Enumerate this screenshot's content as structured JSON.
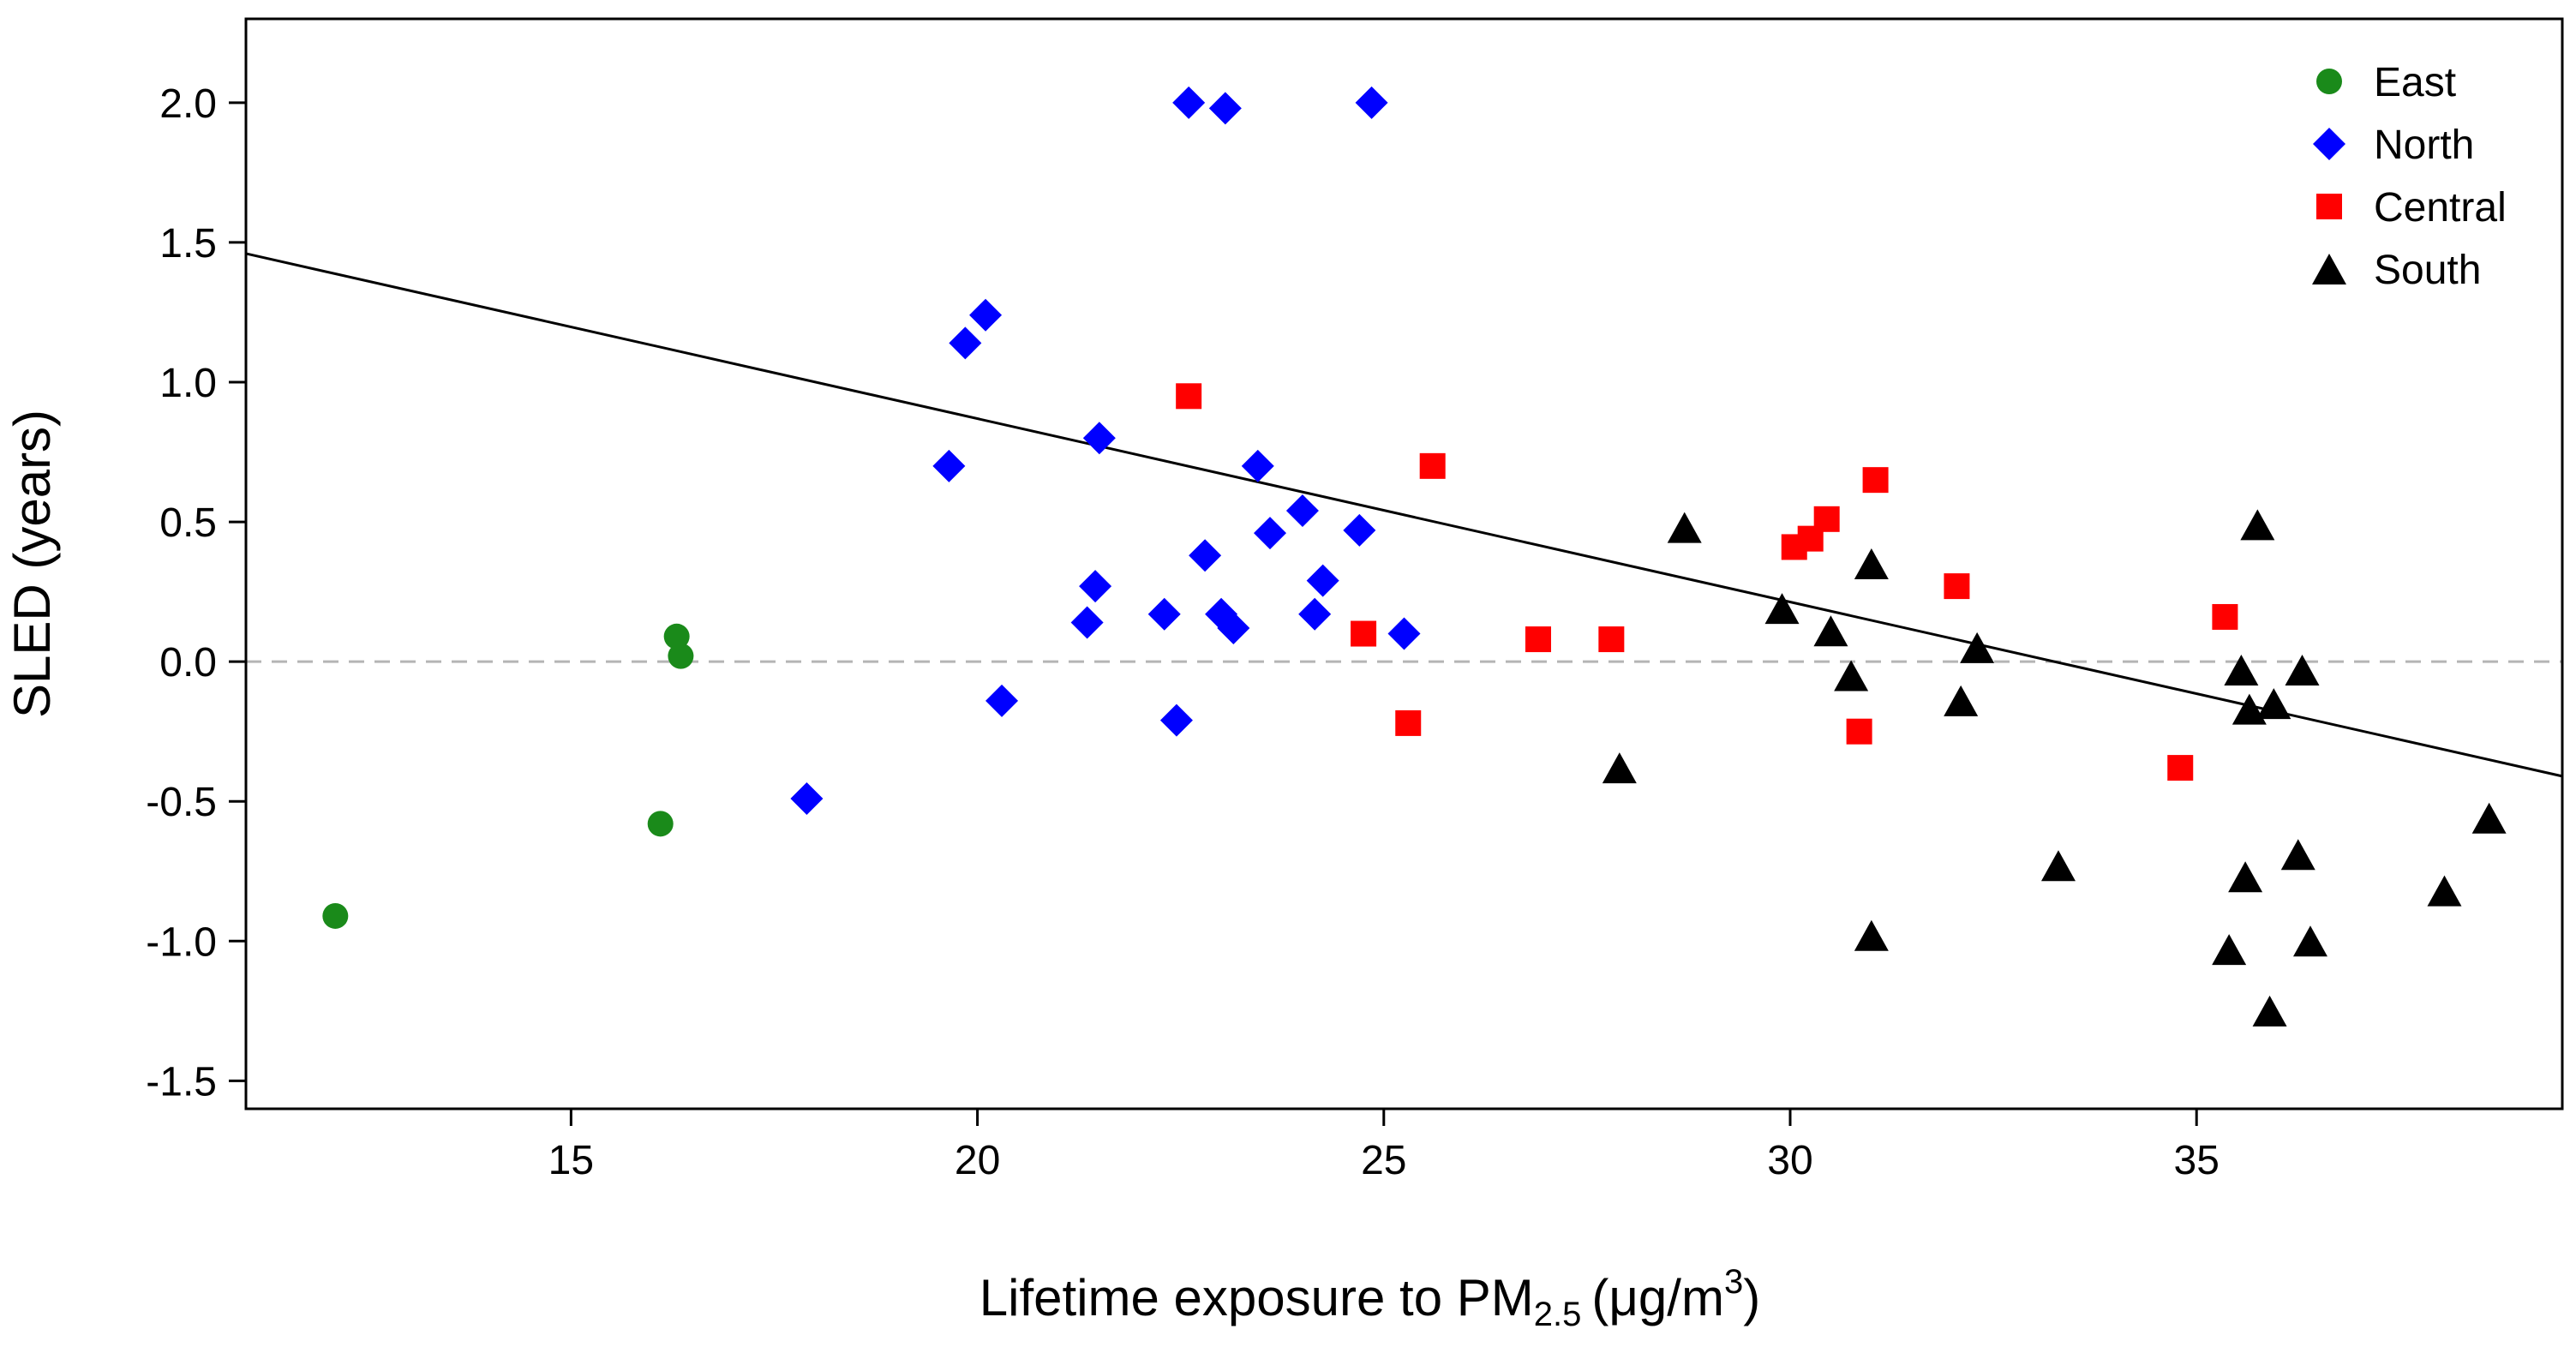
{
  "chart_data": {
    "type": "scatter",
    "title": "",
    "xlabel": "Lifetime exposure to PM",
    "xlabel_subscript": "2.5",
    "xlabel_unit_prefix": "(μg/m",
    "xlabel_unit_superscript": "3",
    "xlabel_unit_suffix": ")",
    "ylabel": "SLED (years)",
    "xlim": [
      11,
      39.5
    ],
    "ylim": [
      -1.6,
      2.3
    ],
    "xticks": [
      15,
      20,
      25,
      30,
      35
    ],
    "xtick_labels": [
      "15",
      "20",
      "25",
      "30",
      "35"
    ],
    "yticks": [
      -1.5,
      -1.0,
      -0.5,
      0.0,
      0.5,
      1.0,
      1.5,
      2.0
    ],
    "ytick_labels": [
      "-1.5",
      "-1.0",
      "-0.5",
      "0.0",
      "0.5",
      "1.0",
      "1.5",
      "2.0"
    ],
    "reference_line_y": 0,
    "regression_line": {
      "x": [
        11,
        39.5
      ],
      "y": [
        1.46,
        -0.41
      ]
    },
    "legend_position": "top-right",
    "series": [
      {
        "name": "East",
        "marker": "circle",
        "color": "#1a8a1a",
        "points": [
          [
            12.1,
            -0.91
          ],
          [
            16.1,
            -0.58
          ],
          [
            16.3,
            0.09
          ],
          [
            16.35,
            0.02
          ]
        ]
      },
      {
        "name": "North",
        "marker": "diamond",
        "color": "#0000ff",
        "points": [
          [
            17.9,
            -0.49
          ],
          [
            19.65,
            0.7
          ],
          [
            19.85,
            1.14
          ],
          [
            20.1,
            1.24
          ],
          [
            20.3,
            -0.14
          ],
          [
            21.35,
            0.14
          ],
          [
            21.45,
            0.27
          ],
          [
            21.5,
            0.8
          ],
          [
            22.3,
            0.17
          ],
          [
            22.45,
            -0.21
          ],
          [
            22.6,
            2.0
          ],
          [
            22.8,
            0.38
          ],
          [
            23.0,
            0.17
          ],
          [
            23.05,
            1.98
          ],
          [
            23.15,
            0.12
          ],
          [
            23.45,
            0.7
          ],
          [
            23.6,
            0.46
          ],
          [
            24.0,
            0.54
          ],
          [
            24.15,
            0.17
          ],
          [
            24.25,
            0.29
          ],
          [
            24.7,
            0.47
          ],
          [
            24.85,
            2.0
          ],
          [
            25.25,
            0.1
          ]
        ]
      },
      {
        "name": "Central",
        "marker": "square",
        "color": "#ff0000",
        "points": [
          [
            22.6,
            0.95
          ],
          [
            24.75,
            0.1
          ],
          [
            25.3,
            -0.22
          ],
          [
            25.6,
            0.7
          ],
          [
            26.9,
            0.08
          ],
          [
            27.8,
            0.08
          ],
          [
            30.05,
            0.41
          ],
          [
            30.25,
            0.44
          ],
          [
            30.45,
            0.51
          ],
          [
            30.85,
            -0.25
          ],
          [
            31.05,
            0.65
          ],
          [
            32.05,
            0.27
          ],
          [
            34.8,
            -0.38
          ],
          [
            35.35,
            0.16
          ]
        ]
      },
      {
        "name": "South",
        "marker": "triangle",
        "color": "#000000",
        "points": [
          [
            27.9,
            -0.38
          ],
          [
            28.7,
            0.48
          ],
          [
            29.9,
            0.19
          ],
          [
            30.5,
            0.11
          ],
          [
            30.75,
            -0.05
          ],
          [
            31.0,
            0.35
          ],
          [
            31.0,
            -0.98
          ],
          [
            32.1,
            -0.14
          ],
          [
            32.3,
            0.05
          ],
          [
            33.3,
            -0.73
          ],
          [
            35.4,
            -1.03
          ],
          [
            35.55,
            -0.03
          ],
          [
            35.6,
            -0.77
          ],
          [
            35.65,
            -0.17
          ],
          [
            35.75,
            0.49
          ],
          [
            35.9,
            -1.25
          ],
          [
            35.95,
            -0.15
          ],
          [
            36.25,
            -0.69
          ],
          [
            36.3,
            -0.03
          ],
          [
            36.4,
            -1.0
          ],
          [
            38.05,
            -0.82
          ],
          [
            38.6,
            -0.56
          ]
        ]
      }
    ]
  }
}
